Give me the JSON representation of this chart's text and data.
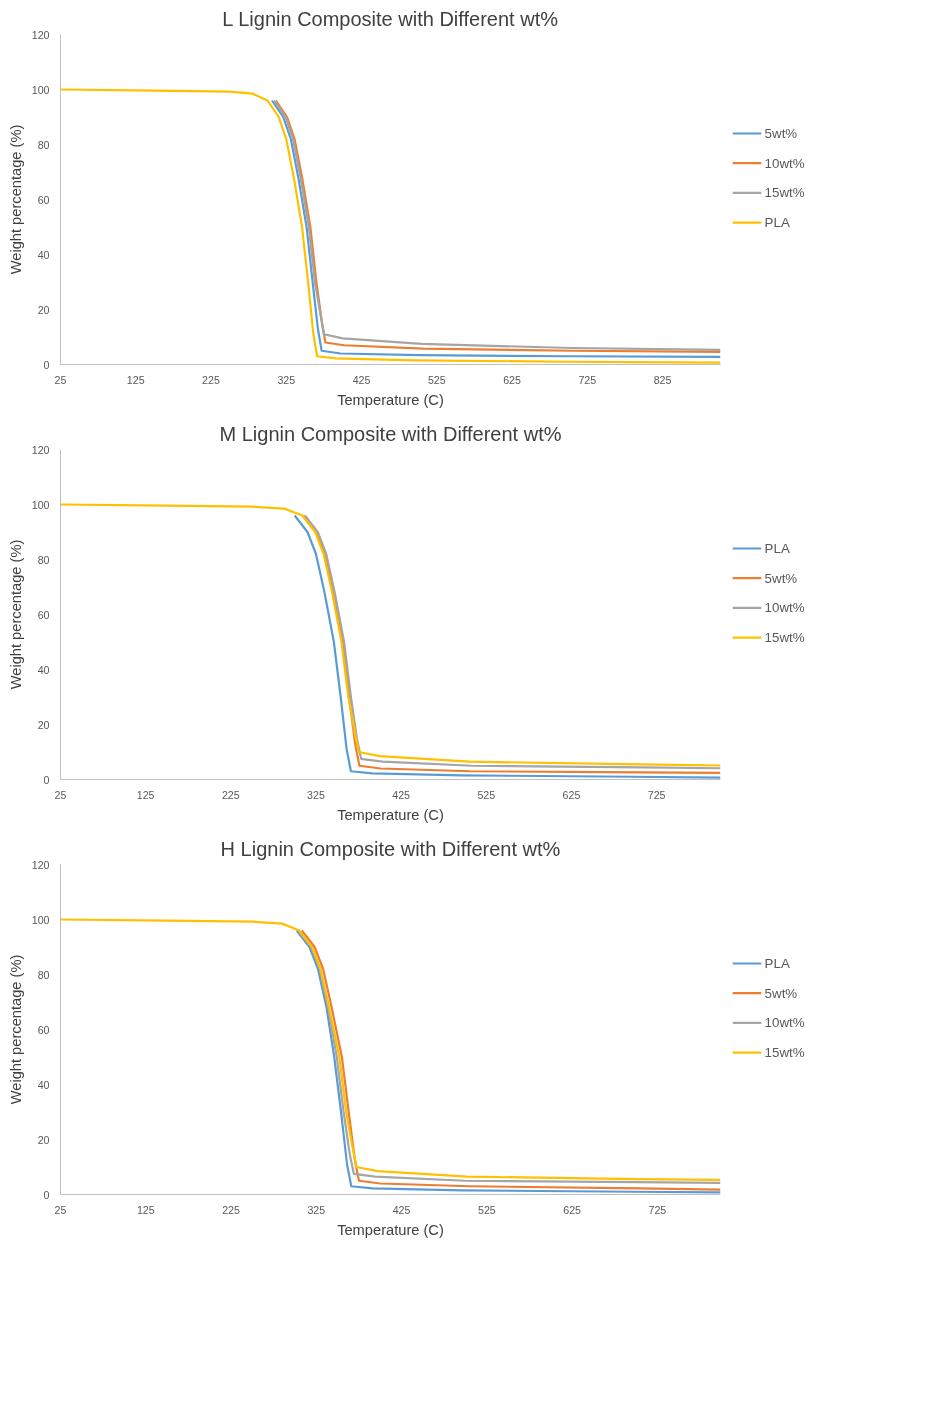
{
  "chart_data": [
    {
      "type": "line",
      "title": "L Lignin Composite with Different wt%",
      "xlabel": "Temperature (C)",
      "ylabel": "Weight percentage (%)",
      "xlim": [
        25,
        902
      ],
      "xticks": [
        25,
        125,
        225,
        325,
        425,
        525,
        625,
        725,
        825
      ],
      "ylim": [
        0,
        120
      ],
      "yticks": [
        0,
        20,
        40,
        60,
        80,
        100,
        120
      ],
      "grid": false,
      "legend": "right",
      "marker": "none",
      "line_style": "solid",
      "series": [
        {
          "name": "5wt%",
          "color": "#5b9bd5",
          "x": [
            306,
            321,
            331,
            341,
            352,
            360,
            367,
            372,
            397,
            502,
            702,
            902
          ],
          "values": [
            96,
            90,
            82,
            68,
            50,
            30,
            13,
            5,
            4,
            3.4,
            3,
            2.8
          ]
        },
        {
          "name": "10wt%",
          "color": "#ed7d31",
          "x": [
            311,
            326,
            336,
            346,
            357,
            365,
            372,
            377,
            402,
            507,
            707,
            902
          ],
          "values": [
            96,
            90,
            82,
            68,
            50,
            30,
            16,
            8,
            7,
            5.8,
            5,
            4.6
          ]
        },
        {
          "name": "15wt%",
          "color": "#a5a5a5",
          "x": [
            309,
            324,
            334,
            344,
            355,
            363,
            370,
            375,
            400,
            505,
            705,
            902
          ],
          "values": [
            96,
            90,
            82,
            68,
            50,
            30,
            19,
            11,
            9.5,
            7.5,
            6,
            5.3
          ]
        },
        {
          "name": "PLA",
          "color": "#ffc000",
          "x": [
            25,
            150,
            250,
            280,
            300,
            315,
            325,
            335,
            346,
            354,
            361,
            366,
            391,
            496,
            696,
            902
          ],
          "values": [
            100,
            99.6,
            99.2,
            98.5,
            96,
            90,
            82,
            68,
            50,
            30,
            11,
            3,
            2.2,
            1.5,
            1,
            0.7
          ]
        }
      ]
    },
    {
      "type": "line",
      "title": "M Lignin Composite with Different wt%",
      "xlabel": "Temperature (C)",
      "ylabel": "Weight percentage (%)",
      "xlim": [
        25,
        800
      ],
      "xticks": [
        25,
        125,
        225,
        325,
        425,
        525,
        625,
        725
      ],
      "ylim": [
        0,
        120
      ],
      "yticks": [
        0,
        20,
        40,
        60,
        80,
        100,
        120
      ],
      "grid": false,
      "legend": "right",
      "marker": "none",
      "line_style": "solid",
      "series": [
        {
          "name": "PLA",
          "color": "#5b9bd5",
          "x": [
            300,
            315,
            325,
            335,
            346,
            354,
            361,
            366,
            391,
            496,
            696,
            800
          ],
          "values": [
            96,
            90,
            82,
            68,
            50,
            30,
            11,
            3,
            2.2,
            1.5,
            1,
            0.7
          ]
        },
        {
          "name": "5wt%",
          "color": "#ed7d31",
          "x": [
            310,
            325,
            335,
            345,
            356,
            364,
            371,
            376,
            401,
            506,
            706,
            800
          ],
          "values": [
            96,
            90,
            82,
            68,
            50,
            30,
            13,
            5,
            4,
            3,
            2.6,
            2.4
          ]
        },
        {
          "name": "10wt%",
          "color": "#a5a5a5",
          "x": [
            312,
            327,
            337,
            347,
            358,
            366,
            373,
            378,
            403,
            508,
            708,
            800
          ],
          "values": [
            96,
            90,
            82,
            68,
            50,
            30,
            15,
            7.5,
            6.5,
            5,
            4.4,
            4.1
          ]
        },
        {
          "name": "15wt%",
          "color": "#ffc000",
          "x": [
            25,
            150,
            250,
            288,
            309,
            324,
            334,
            344,
            355,
            363,
            370,
            375,
            400,
            505,
            705,
            800
          ],
          "values": [
            100,
            99.6,
            99.2,
            98.5,
            96,
            90,
            82,
            68,
            50,
            30,
            18,
            10,
            8.5,
            6.5,
            5.5,
            5.1
          ]
        }
      ]
    },
    {
      "type": "line",
      "title": "H Lignin Composite with Different wt%",
      "xlabel": "Temperature (C)",
      "ylabel": "Weight percentage (%)",
      "xlim": [
        25,
        799
      ],
      "xticks": [
        25,
        125,
        225,
        325,
        425,
        525,
        625,
        725
      ],
      "ylim": [
        0,
        120
      ],
      "yticks": [
        0,
        20,
        40,
        60,
        80,
        100,
        120
      ],
      "grid": false,
      "legend": "right",
      "marker": "none",
      "line_style": "solid",
      "series": [
        {
          "name": "PLA",
          "color": "#5b9bd5",
          "x": [
            302,
            317,
            327,
            337,
            346,
            354,
            361,
            366,
            391,
            496,
            696,
            799
          ],
          "values": [
            96,
            90,
            82,
            68,
            50,
            30,
            11,
            3,
            2.2,
            1.5,
            1,
            0.8
          ]
        },
        {
          "name": "5wt%",
          "color": "#ed7d31",
          "x": [
            308,
            323,
            333,
            343,
            355,
            363,
            370,
            375,
            400,
            505,
            705,
            799
          ],
          "values": [
            96,
            90,
            82,
            68,
            50,
            30,
            13,
            5,
            4,
            3,
            2.2,
            1.8
          ]
        },
        {
          "name": "10wt%",
          "color": "#a5a5a5",
          "x": [
            304,
            319,
            329,
            339,
            349,
            357,
            364,
            369,
            394,
            499,
            699,
            799
          ],
          "values": [
            96,
            90,
            82,
            68,
            50,
            30,
            15,
            7.5,
            6.5,
            5,
            4.5,
            4.2
          ]
        },
        {
          "name": "15wt%",
          "color": "#ffc000",
          "x": [
            25,
            150,
            250,
            285,
            305,
            320,
            330,
            340,
            352,
            360,
            367,
            372,
            397,
            502,
            702,
            799
          ],
          "values": [
            100,
            99.6,
            99.2,
            98.5,
            96,
            90,
            82,
            68,
            50,
            30,
            18,
            10,
            8.5,
            6.5,
            5.6,
            5.3
          ]
        }
      ]
    }
  ]
}
